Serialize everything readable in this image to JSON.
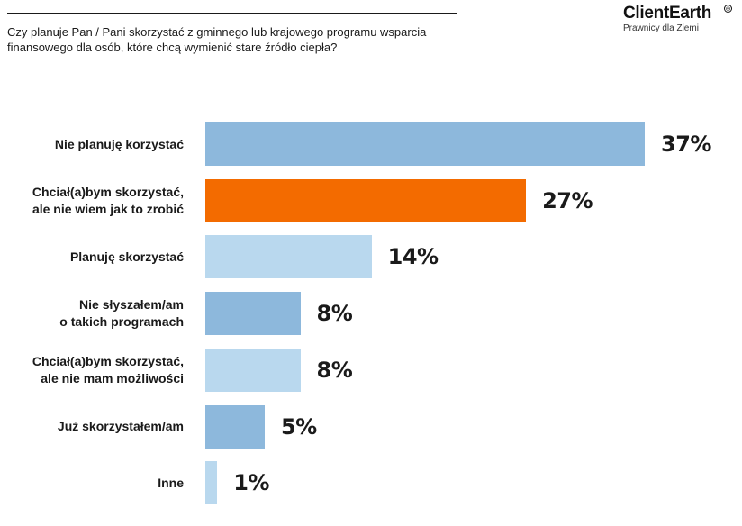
{
  "header": {
    "question": "Czy planuje Pan / Pani skorzystać z gminnego lub krajowego programu wsparcia finansowego dla osób, które chcą wymienić stare źródło ciepła?"
  },
  "logo": {
    "name": "ClientEarth",
    "tagline": "Prawnicy dla Ziemi"
  },
  "colors": {
    "bar_blue": "#8db8dc",
    "bar_light_blue": "#b9d8ee",
    "bar_orange": "#f36b00"
  },
  "chart_data": {
    "type": "bar",
    "orientation": "horizontal",
    "title": "Czy planuje Pan / Pani skorzystać z gminnego lub krajowego programu wsparcia finansowego dla osób, które chcą wymienić stare źródło ciepła?",
    "xlabel": "",
    "ylabel": "",
    "xlim": [
      0,
      37
    ],
    "categories": [
      "Nie planuję korzystać",
      "Chciał(a)bym skorzystać,\nale nie wiem jak to zrobić",
      "Planuję skorzystać",
      "Nie słyszałem/am\no takich programach",
      "Chciał(a)bym skorzystać,\nale nie mam możliwości",
      "Już skorzystałem/am",
      "Inne"
    ],
    "values": [
      37,
      27,
      14,
      8,
      8,
      5,
      1
    ],
    "value_labels": [
      "37%",
      "27%",
      "14%",
      "8%",
      "8%",
      "5%",
      "1%"
    ],
    "bar_colors": [
      "#8db8dc",
      "#f36b00",
      "#b9d8ee",
      "#8db8dc",
      "#b9d8ee",
      "#8db8dc",
      "#b9d8ee"
    ]
  }
}
